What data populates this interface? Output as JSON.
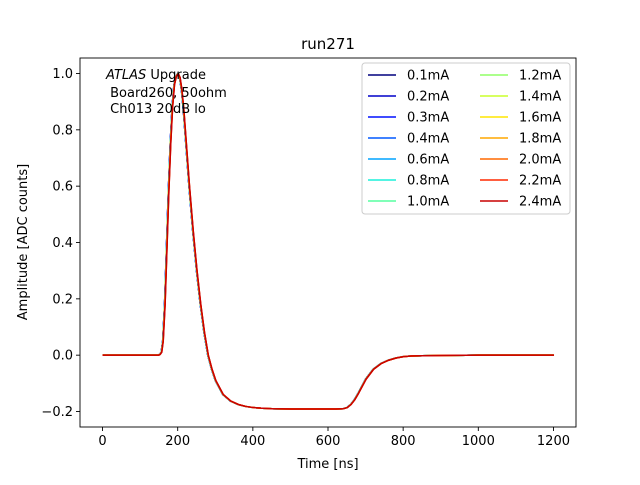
{
  "chart_data": {
    "type": "line",
    "title": "run271",
    "xlabel": "Time [ns]",
    "ylabel": "Amplitude [ADC counts]",
    "xlim": [
      -60,
      1260
    ],
    "ylim": [
      -0.255,
      1.055
    ],
    "xticks": [
      0,
      200,
      400,
      600,
      800,
      1000,
      1200
    ],
    "xtick_labels": [
      "0",
      "200",
      "400",
      "600",
      "800",
      "1000",
      "1200"
    ],
    "yticks": [
      -0.2,
      0.0,
      0.2,
      0.4,
      0.6,
      0.8,
      1.0
    ],
    "ytick_labels": [
      "−0.2",
      "0.0",
      "0.2",
      "0.4",
      "0.6",
      "0.8",
      "1.0"
    ],
    "grid": false,
    "legend_position": "top-right",
    "legend_columns": 2,
    "annotation": {
      "italic_prefix": "ATLAS",
      "line1_rest": " Upgrade",
      "line2": "Board260, 50ohm",
      "line3": "Ch013 20dB lo"
    },
    "pulse_shape": {
      "x": [
        0,
        140,
        148,
        152,
        156,
        160,
        165,
        170,
        175,
        180,
        185,
        190,
        195,
        200,
        205,
        210,
        215,
        220,
        225,
        230,
        240,
        250,
        260,
        270,
        280,
        290,
        300,
        320,
        340,
        360,
        380,
        400,
        420,
        450,
        500,
        550,
        600,
        620,
        640,
        650,
        660,
        670,
        680,
        690,
        700,
        720,
        740,
        760,
        780,
        800,
        820,
        850,
        900,
        1000,
        1100,
        1200
      ],
      "y": [
        0.0,
        0.0,
        0.0,
        0.003,
        0.01,
        0.05,
        0.18,
        0.38,
        0.58,
        0.75,
        0.88,
        0.96,
        0.99,
        1.0,
        0.985,
        0.94,
        0.87,
        0.78,
        0.69,
        0.6,
        0.44,
        0.3,
        0.18,
        0.08,
        0.0,
        -0.05,
        -0.09,
        -0.14,
        -0.163,
        -0.175,
        -0.182,
        -0.186,
        -0.188,
        -0.19,
        -0.191,
        -0.191,
        -0.191,
        -0.191,
        -0.19,
        -0.186,
        -0.175,
        -0.158,
        -0.135,
        -0.11,
        -0.085,
        -0.05,
        -0.03,
        -0.018,
        -0.01,
        -0.005,
        -0.003,
        -0.002,
        -0.001,
        0.0,
        0.0,
        0.0
      ]
    },
    "series": [
      {
        "name": "0.1mA",
        "color": "#00007f",
        "x_shift": 0.0,
        "y_offset": 0.0
      },
      {
        "name": "0.2mA",
        "color": "#0000c8",
        "x_shift": 0.0,
        "y_offset": 0.0
      },
      {
        "name": "0.3mA",
        "color": "#0010ff",
        "x_shift": 0.0,
        "y_offset": 0.0
      },
      {
        "name": "0.4mA",
        "color": "#0058ff",
        "x_shift": 0.0,
        "y_offset": 0.0
      },
      {
        "name": "0.6mA",
        "color": "#00a4ff",
        "x_shift": 0.5,
        "y_offset": 0.0
      },
      {
        "name": "0.8mA",
        "color": "#1cf0da",
        "x_shift": 0.5,
        "y_offset": 0.0
      },
      {
        "name": "1.0mA",
        "color": "#56ffa0",
        "x_shift": 0.5,
        "y_offset": 0.0
      },
      {
        "name": "1.2mA",
        "color": "#90ff66",
        "x_shift": 0.5,
        "y_offset": 0.0
      },
      {
        "name": "1.4mA",
        "color": "#caff2c",
        "x_shift": 1.0,
        "y_offset": 0.0
      },
      {
        "name": "1.6mA",
        "color": "#ffe600",
        "x_shift": 1.0,
        "y_offset": 0.0
      },
      {
        "name": "1.8mA",
        "color": "#ffa700",
        "x_shift": 1.0,
        "y_offset": 0.0
      },
      {
        "name": "2.0mA",
        "color": "#ff6800",
        "x_shift": 1.0,
        "y_offset": 0.0
      },
      {
        "name": "2.2mA",
        "color": "#ff2900",
        "x_shift": 1.5,
        "y_offset": 0.0
      },
      {
        "name": "2.4mA",
        "color": "#c80000",
        "x_shift": 1.5,
        "y_offset": 0.0
      }
    ]
  }
}
